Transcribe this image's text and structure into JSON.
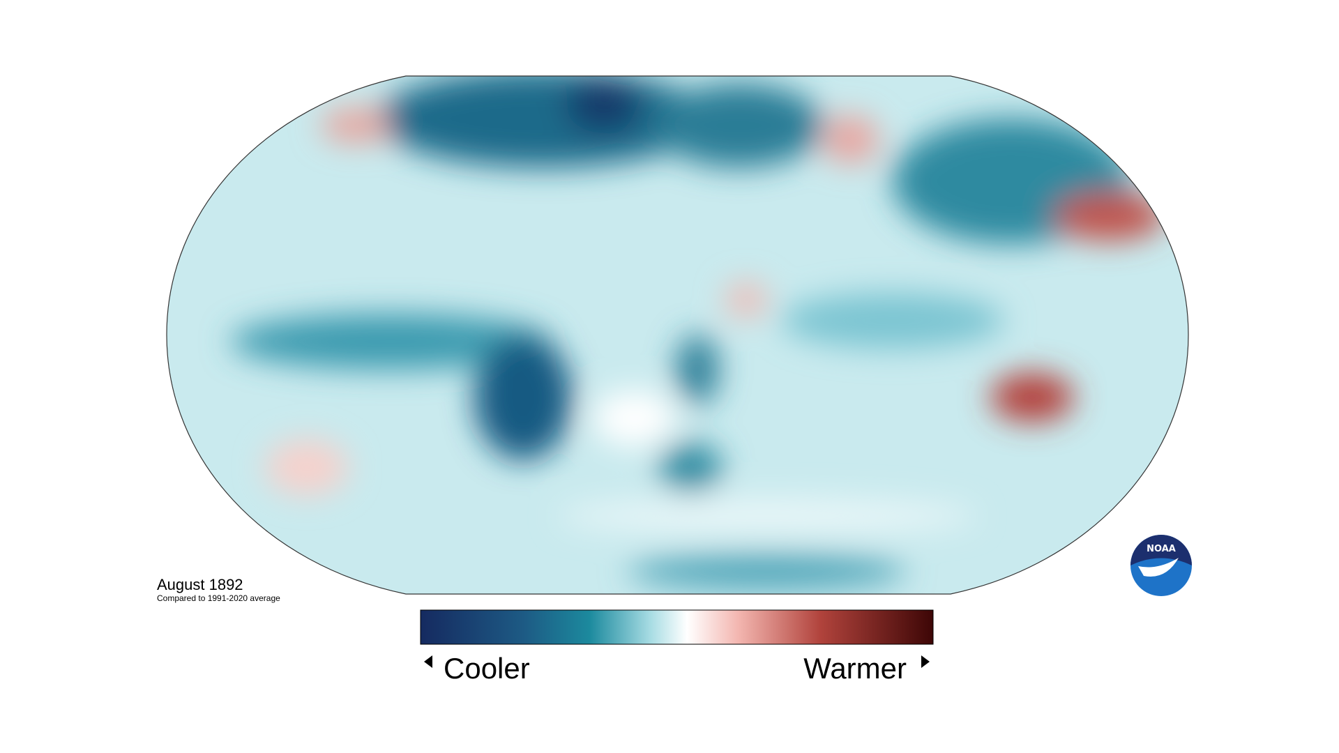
{
  "map": {
    "title": "August 1892",
    "subtitle": "Compared to 1991-2020 average"
  },
  "legend": {
    "low_label": "Cooler",
    "high_label": "Warmer"
  },
  "logo": {
    "text": "NOAA"
  }
}
